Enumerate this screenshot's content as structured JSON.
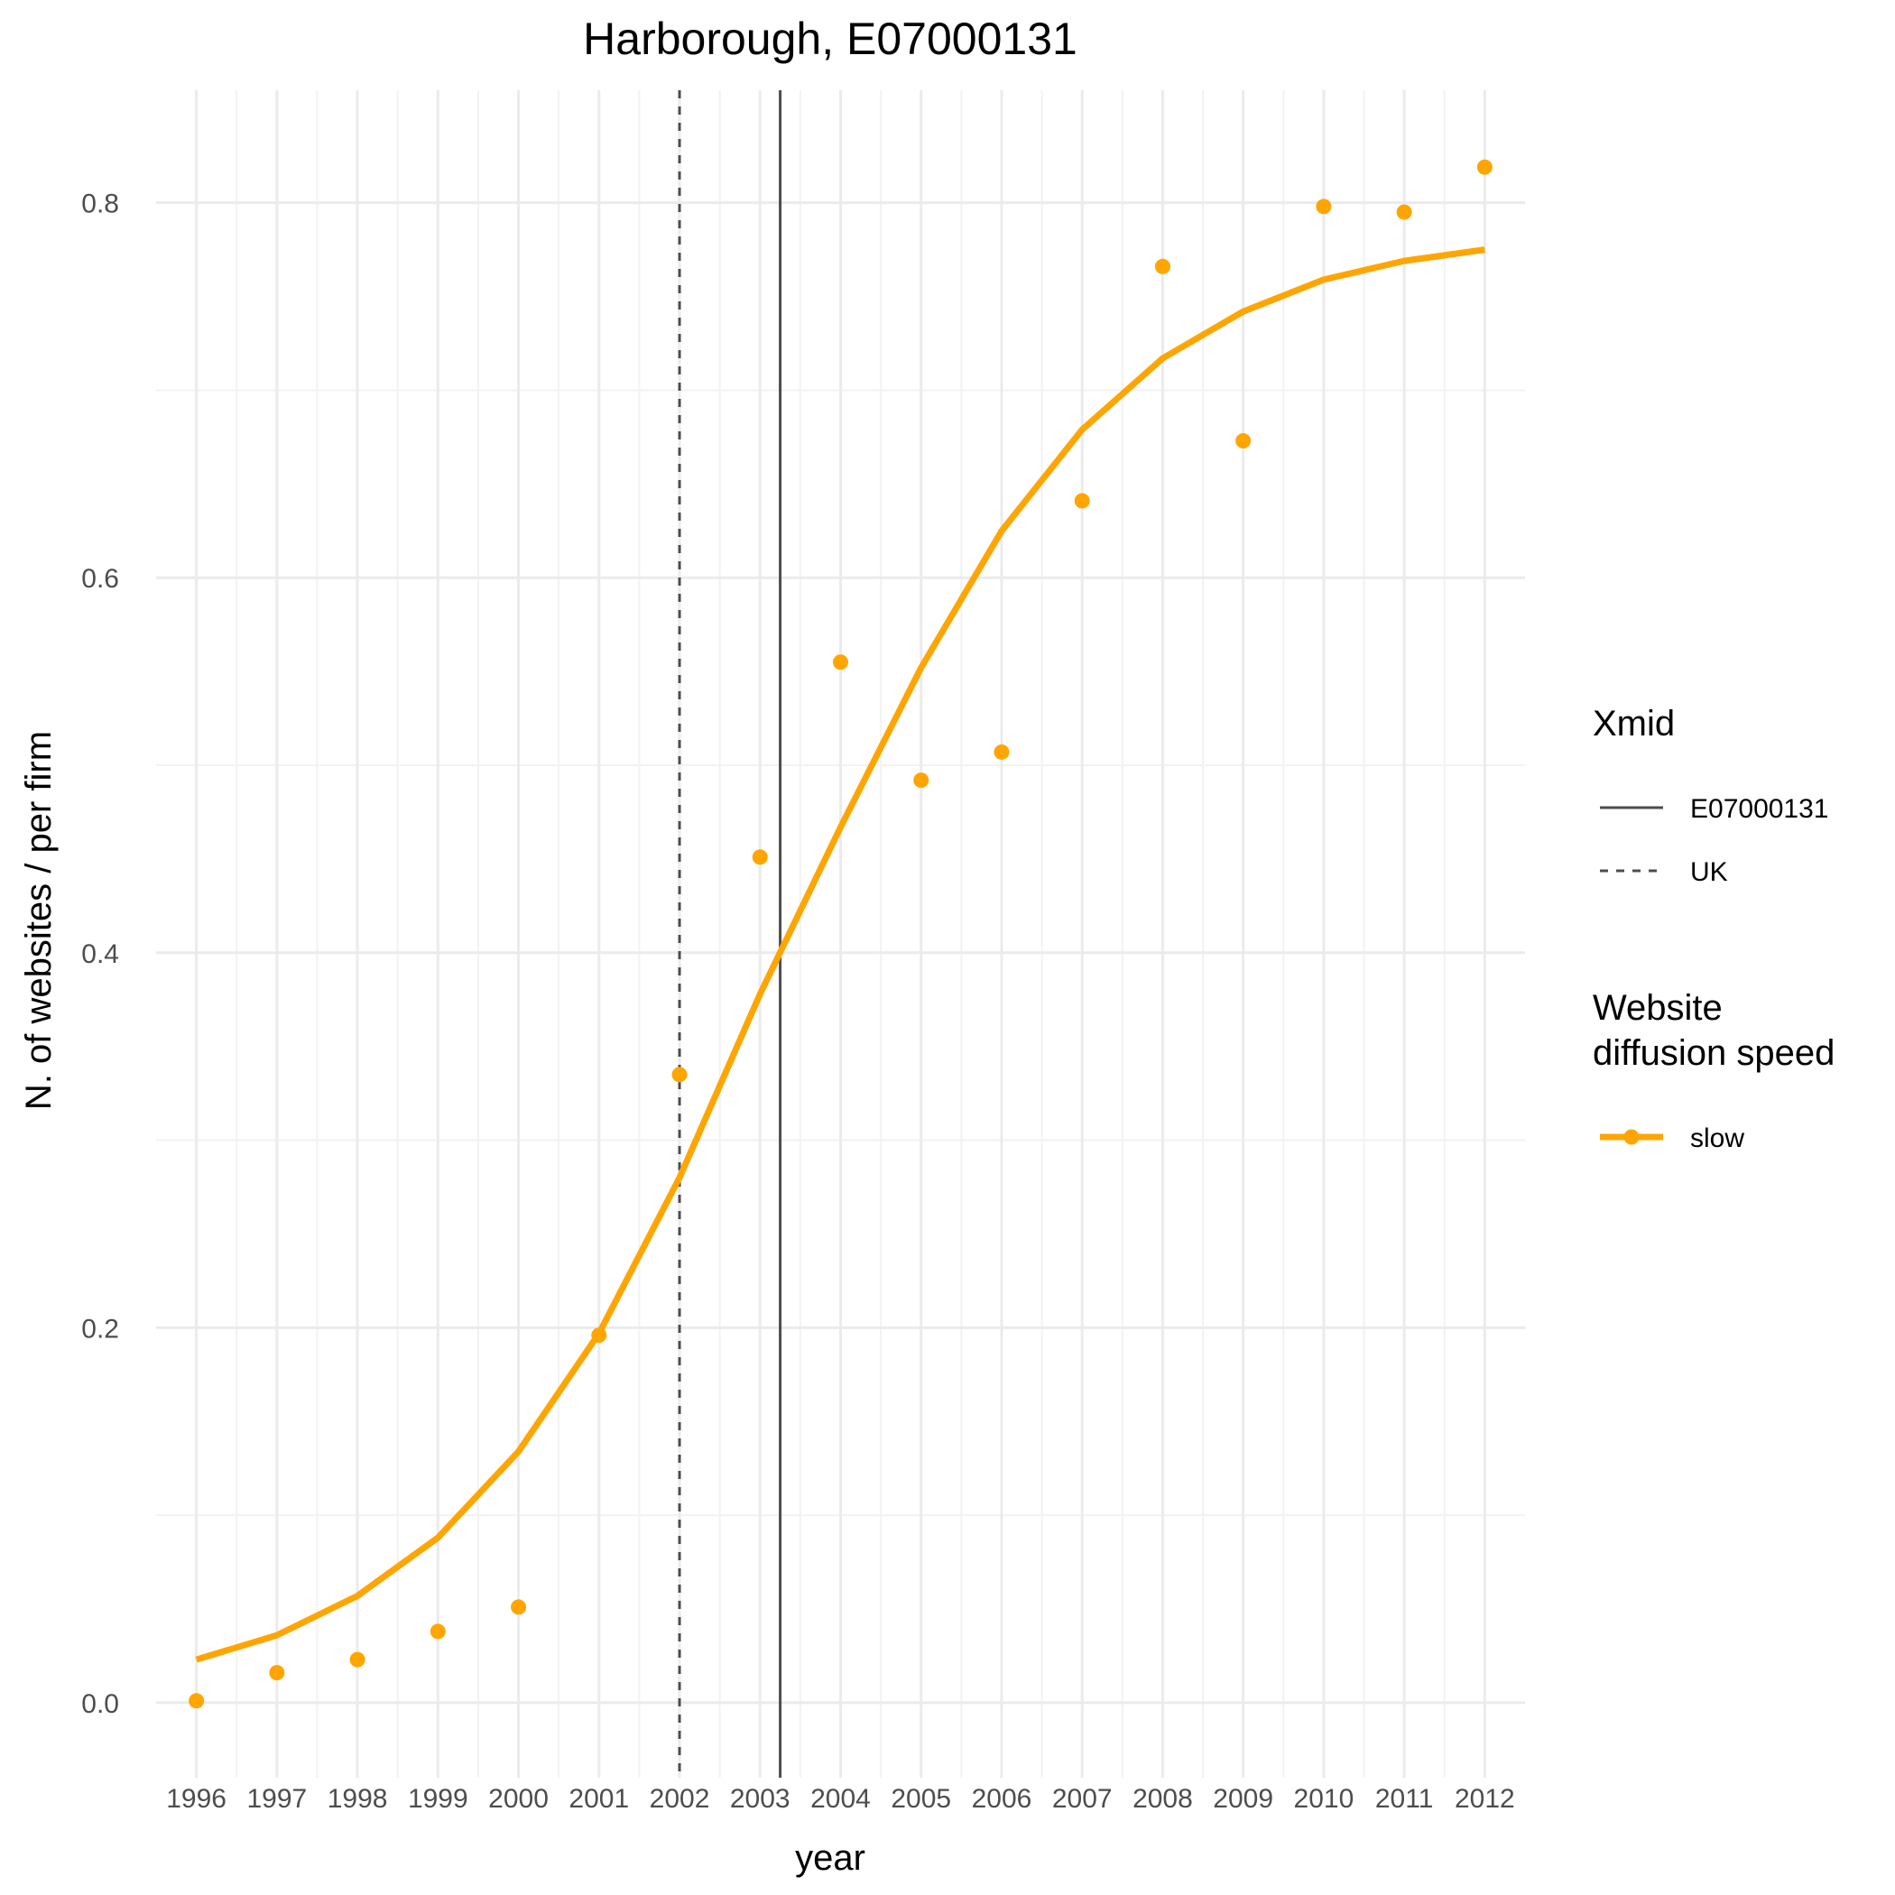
{
  "chart_data": {
    "type": "line",
    "title": "Harborough, E07000131",
    "xlabel": "year",
    "ylabel": "N. of websites / per firm",
    "x": [
      1996,
      1997,
      1998,
      1999,
      2000,
      2001,
      2002,
      2003,
      2004,
      2005,
      2006,
      2007,
      2008,
      2009,
      2010,
      2011,
      2012
    ],
    "x_tick_labels": [
      "1996",
      "1997",
      "1998",
      "1999",
      "2000",
      "2001",
      "2002",
      "2003",
      "2004",
      "2005",
      "2006",
      "2007",
      "2008",
      "2009",
      "2010",
      "2011",
      "2012"
    ],
    "xlim": [
      1995.5,
      2012.5
    ],
    "ylim": [
      -0.04,
      0.86
    ],
    "y_ticks": [
      0.0,
      0.2,
      0.4,
      0.6,
      0.8
    ],
    "y_tick_labels": [
      "0.0",
      "0.2",
      "0.4",
      "0.6",
      "0.8"
    ],
    "grid": true,
    "series": [
      {
        "name": "slow",
        "color": "#FFA500",
        "points": [
          0.001,
          0.016,
          0.023,
          0.038,
          0.051,
          0.196,
          0.335,
          0.451,
          0.555,
          0.492,
          0.507,
          0.641,
          0.766,
          0.673,
          0.798,
          0.795,
          0.819
        ],
        "fitted": [
          0.023,
          0.036,
          0.057,
          0.088,
          0.134,
          0.197,
          0.28,
          0.378,
          0.467,
          0.552,
          0.625,
          0.679,
          0.717,
          0.742,
          0.759,
          0.769,
          0.775
        ]
      }
    ],
    "vlines": [
      {
        "name": "E07000131",
        "x": 2003.25,
        "style": "solid",
        "color": "#4d4d4d"
      },
      {
        "name": "UK",
        "x": 2002.0,
        "style": "dashed",
        "color": "#4d4d4d"
      }
    ],
    "legend": {
      "placement": "right",
      "groups": [
        {
          "title": [
            "Xmid"
          ],
          "items": [
            {
              "label": "E07000131",
              "kind": "solid-line"
            },
            {
              "label": "UK",
              "kind": "dashed-line"
            }
          ]
        },
        {
          "title": [
            "Website",
            "diffusion speed"
          ],
          "items": [
            {
              "label": "slow",
              "kind": "line-point",
              "color": "#FFA500"
            }
          ]
        }
      ]
    }
  }
}
